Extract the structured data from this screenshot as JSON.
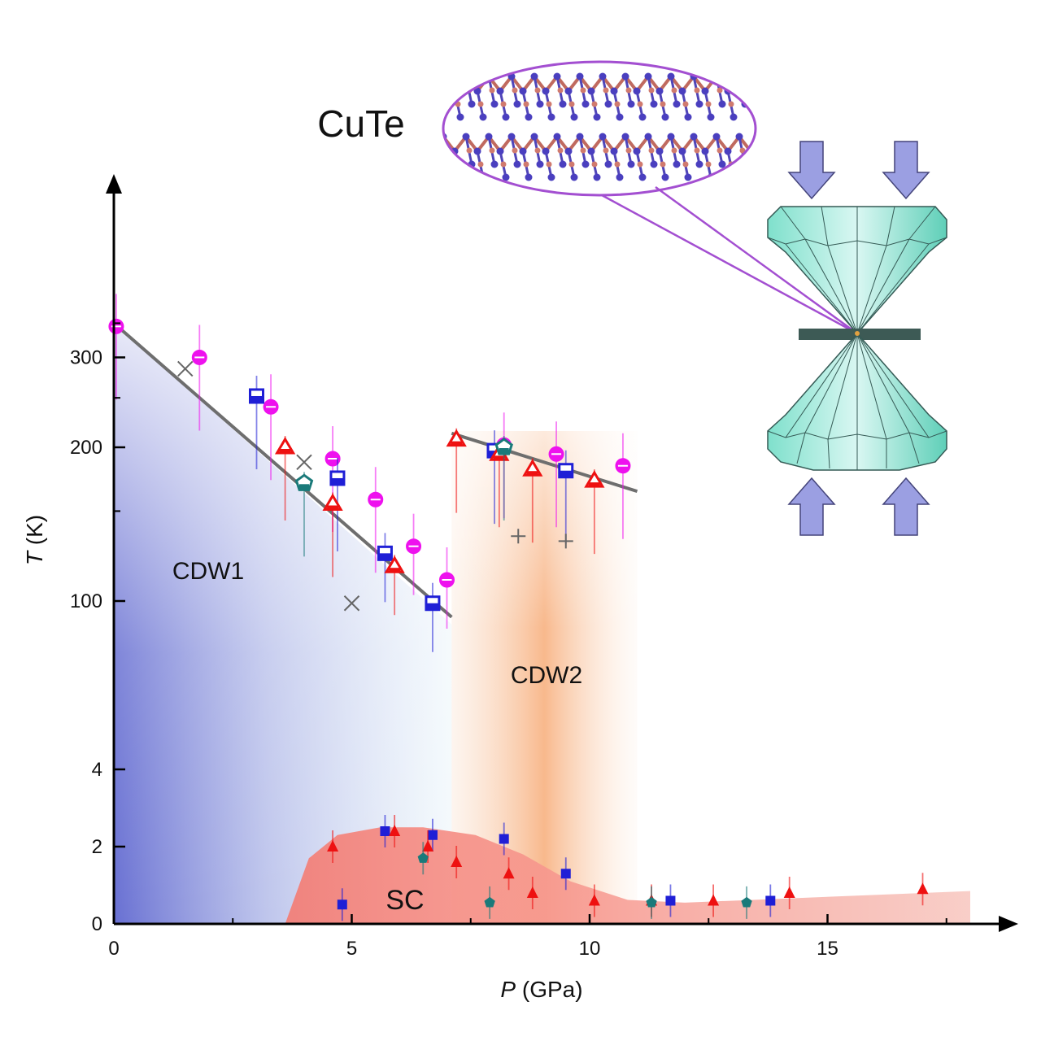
{
  "chart_data": {
    "type": "scatter",
    "title": "CuTe",
    "xlabel": {
      "italic": "P",
      "rest": " (GPa)"
    },
    "ylabel": {
      "italic": "T",
      "rest": " (K)"
    },
    "xlim": [
      0,
      18.5
    ],
    "xticks": [
      0,
      5,
      10,
      15
    ],
    "y_axis_note": "broken axis: linear 0-4 K below, log-like 100-350 K above",
    "yticks": [
      "0",
      "2",
      "4",
      "100",
      "200",
      "300"
    ],
    "regions": {
      "cdw1": {
        "label": "CDW1",
        "color": "#6a74d6"
      },
      "cdw2": {
        "label": "CDW2",
        "color": "#f6b07e"
      },
      "sc": {
        "label": "SC",
        "color": "#f4867f"
      }
    },
    "colors": {
      "magenta": "#ee11ee",
      "blue": "#1f1fd6",
      "red": "#ee1111",
      "teal": "#1a7a7a",
      "grey": "#666666"
    },
    "series": [
      {
        "marker": "circle-half",
        "color": "magenta",
        "points": [
          [
            0.05,
            345
          ],
          [
            1.8,
            300
          ],
          [
            3.3,
            240
          ],
          [
            4.6,
            190
          ],
          [
            5.5,
            158
          ],
          [
            6.3,
            128
          ],
          [
            7.0,
            110
          ],
          [
            8.2,
            202
          ],
          [
            9.3,
            194
          ],
          [
            10.7,
            184
          ]
        ]
      },
      {
        "marker": "square-half",
        "color": "blue",
        "points": [
          [
            3.0,
            252
          ],
          [
            4.7,
            174
          ],
          [
            5.7,
            124
          ],
          [
            6.7,
            99
          ],
          [
            8.0,
            197
          ],
          [
            9.5,
            180
          ]
        ]
      },
      {
        "marker": "triangle-open",
        "color": "red",
        "points": [
          [
            3.6,
            200
          ],
          [
            4.6,
            155
          ],
          [
            5.9,
            117
          ],
          [
            7.2,
            207
          ],
          [
            8.1,
            194
          ],
          [
            8.8,
            181
          ],
          [
            10.1,
            172
          ]
        ]
      },
      {
        "marker": "pentagon-open",
        "color": "teal",
        "points": [
          [
            4.0,
            170
          ],
          [
            8.2,
            200
          ]
        ]
      },
      {
        "marker": "x-cross",
        "color": "grey",
        "points": [
          [
            1.5,
            285
          ],
          [
            4.0,
            187
          ],
          [
            5.0,
            99
          ]
        ]
      },
      {
        "marker": "plus",
        "color": "grey",
        "points": [
          [
            8.5,
            134
          ],
          [
            9.5,
            131
          ]
        ]
      },
      {
        "marker": "square-filled",
        "color": "blue",
        "points": [
          [
            4.8,
            0.5
          ],
          [
            5.7,
            2.4
          ],
          [
            6.7,
            2.3
          ],
          [
            8.2,
            2.2
          ],
          [
            9.5,
            1.3
          ],
          [
            11.7,
            0.6
          ],
          [
            13.8,
            0.6
          ]
        ]
      },
      {
        "marker": "triangle-filled",
        "color": "red",
        "points": [
          [
            4.6,
            2.0
          ],
          [
            5.9,
            2.4
          ],
          [
            6.6,
            2.0
          ],
          [
            7.2,
            1.6
          ],
          [
            8.3,
            1.3
          ],
          [
            8.8,
            0.8
          ],
          [
            10.1,
            0.6
          ],
          [
            11.3,
            0.6
          ],
          [
            12.6,
            0.6
          ],
          [
            14.2,
            0.8
          ],
          [
            17.0,
            0.9
          ]
        ]
      },
      {
        "marker": "pentagon-filled",
        "color": "teal",
        "points": [
          [
            6.5,
            1.7
          ],
          [
            7.9,
            0.55
          ],
          [
            11.3,
            0.55
          ],
          [
            13.3,
            0.55
          ]
        ]
      }
    ]
  }
}
